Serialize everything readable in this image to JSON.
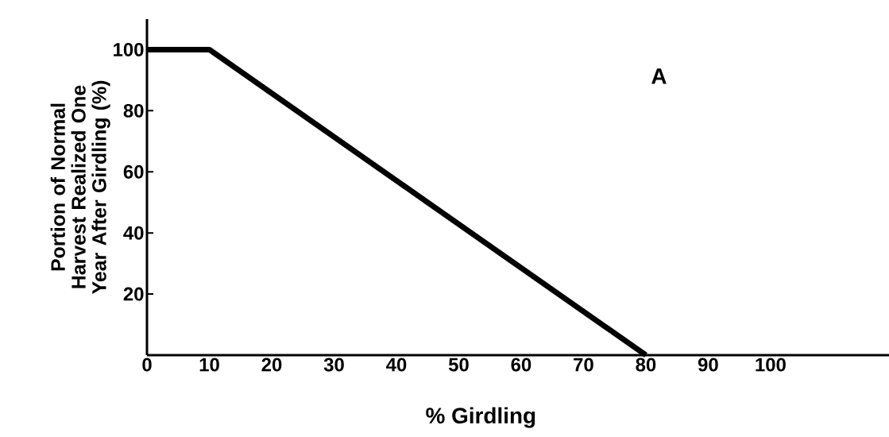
{
  "chart_data": {
    "type": "line",
    "xlabel": "% Girdling",
    "ylabel": "Portion of Normal Harvest Realized One Year After Girdling (%)",
    "annotations": [
      "A"
    ],
    "x": [
      0,
      10,
      80
    ],
    "values": [
      100,
      100,
      0
    ],
    "color": "#000000",
    "xlim": [
      0,
      119
    ],
    "ylim": [
      0,
      110
    ],
    "xticks": [
      0,
      10,
      20,
      30,
      40,
      50,
      60,
      70,
      80,
      90,
      100
    ],
    "yticks": [
      20,
      40,
      60,
      80,
      100
    ]
  }
}
